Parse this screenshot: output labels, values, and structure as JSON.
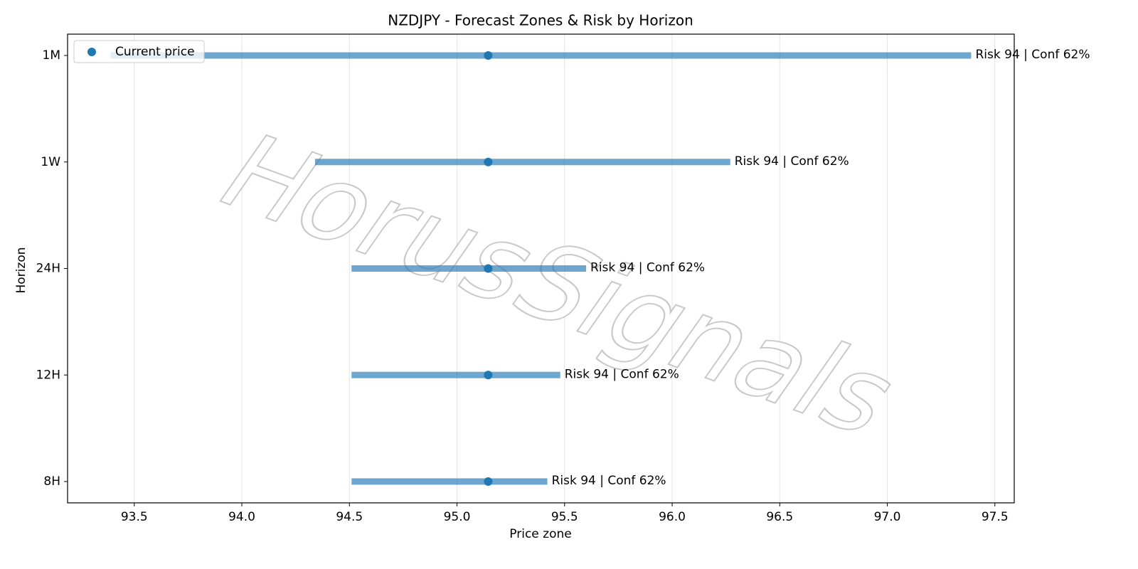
{
  "chart_data": {
    "type": "range",
    "title": "NZDJPY - Forecast Zones & Risk by Horizon",
    "x_label": "Price zone",
    "y_label": "Horizon",
    "categories": [
      "1M",
      "1W",
      "24H",
      "12H",
      "8H"
    ],
    "low": [
      93.39,
      94.34,
      94.51,
      94.51,
      94.51
    ],
    "high": [
      97.39,
      96.27,
      95.6,
      95.48,
      95.42
    ],
    "bar_color": "#1f77b4",
    "current": {
      "name": "Current price",
      "color": "#1f77b4",
      "values": [
        95.145,
        95.145,
        95.145,
        95.145,
        95.145
      ]
    },
    "annotations": [
      "Risk 94 | Conf 62%",
      "Risk 94 | Conf 62%",
      "Risk 94 | Conf 62%",
      "Risk 94 | Conf 62%",
      "Risk 94 | Conf 62%"
    ],
    "xlim": [
      93.19,
      97.59
    ],
    "xticks": [
      93.5,
      {
        "value": 94,
        "label": "94.0"
      },
      94.5,
      {
        "value": 95,
        "label": "95.0"
      },
      95.5,
      {
        "value": 96,
        "label": "96.0"
      },
      96.5,
      {
        "value": 97,
        "label": "97.0"
      },
      97.5
    ],
    "grid": true,
    "legend": "upper left",
    "watermark": "HorusSignals"
  }
}
